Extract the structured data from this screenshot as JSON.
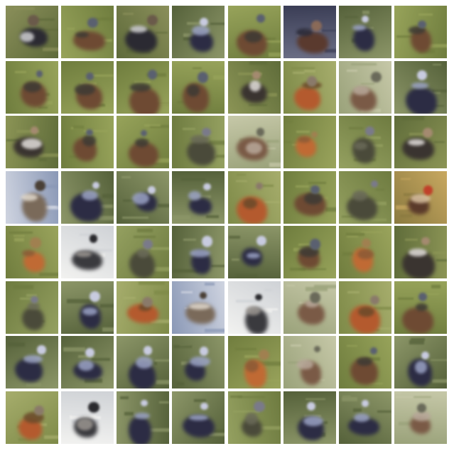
{
  "grid": {
    "rows": 8,
    "cols": 8,
    "description_colors": {
      "grass": "#7b8b45",
      "dark_grass": "#4f5a2a",
      "pale": "#c9ccd0",
      "dark_bird": "#2e2c3a",
      "brown_bird": "#7a4a30",
      "orange_bird": "#c2552a",
      "white": "#e8e6e2"
    },
    "tiles": [
      [
        "dark",
        "brown",
        "dark",
        "navy",
        "brown",
        "night",
        "navy",
        "brown"
      ],
      [
        "brown",
        "brown",
        "brown",
        "brown",
        "white",
        "orange",
        "pale",
        "navy"
      ],
      [
        "white",
        "brown",
        "brown",
        "thin",
        "pale",
        "fox",
        "thin",
        "white"
      ],
      [
        "sky",
        "navy",
        "navy",
        "navy",
        "orange",
        "brown",
        "thin",
        "flower"
      ],
      [
        "fox",
        "snow",
        "thin",
        "navy",
        "navy",
        "brown",
        "fox",
        "white"
      ],
      [
        "thin",
        "navy",
        "orange",
        "sky",
        "snow",
        "pale",
        "orange",
        "brown"
      ],
      [
        "navy",
        "navy",
        "navy",
        "navy",
        "fox",
        "pale",
        "brown",
        "navy"
      ],
      [
        "orange",
        "snow",
        "navy",
        "navy",
        "thin",
        "navy",
        "navy",
        "pale"
      ]
    ]
  }
}
